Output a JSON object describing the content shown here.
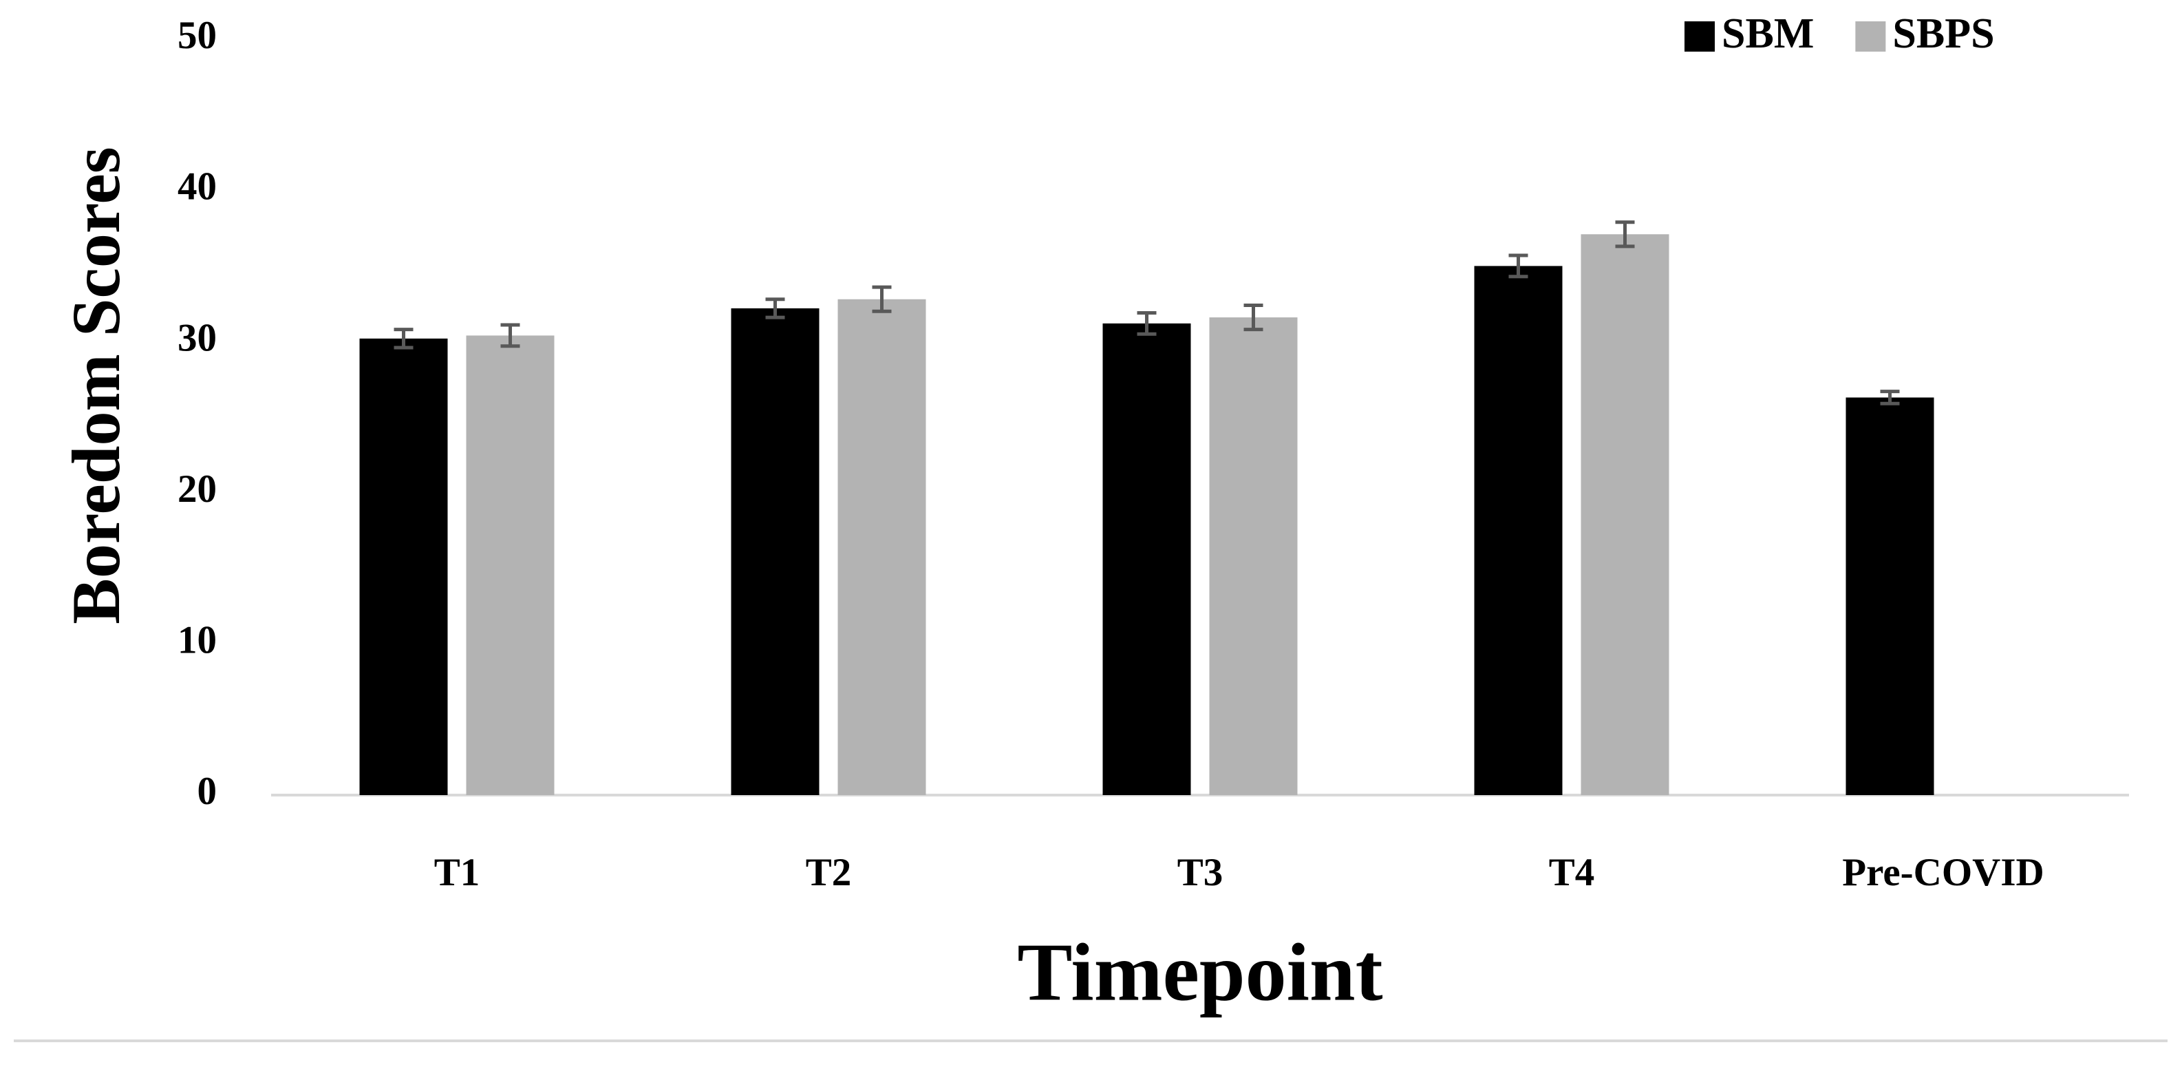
{
  "chart_data": {
    "type": "bar",
    "x_label": "Timepoint",
    "y_label": "Boredom Scores",
    "categories": [
      "T1",
      "T2",
      "T3",
      "T4",
      "Pre-COVID"
    ],
    "series": [
      {
        "name": "SBM",
        "color": "#000000",
        "values": [
          30.2,
          32.2,
          31.2,
          35.0,
          26.3
        ],
        "errors": [
          0.6,
          0.6,
          0.7,
          0.7,
          0.4
        ]
      },
      {
        "name": "SBPS",
        "color": "#b3b3b3",
        "values": [
          30.4,
          32.8,
          31.6,
          37.1,
          null
        ],
        "errors": [
          0.7,
          0.8,
          0.8,
          0.8,
          null
        ]
      }
    ],
    "error_color": "#595959",
    "ylim": [
      0,
      50
    ],
    "yticks": [
      0,
      10,
      20,
      30,
      40,
      50
    ],
    "grid": false,
    "legend": "top-right"
  }
}
